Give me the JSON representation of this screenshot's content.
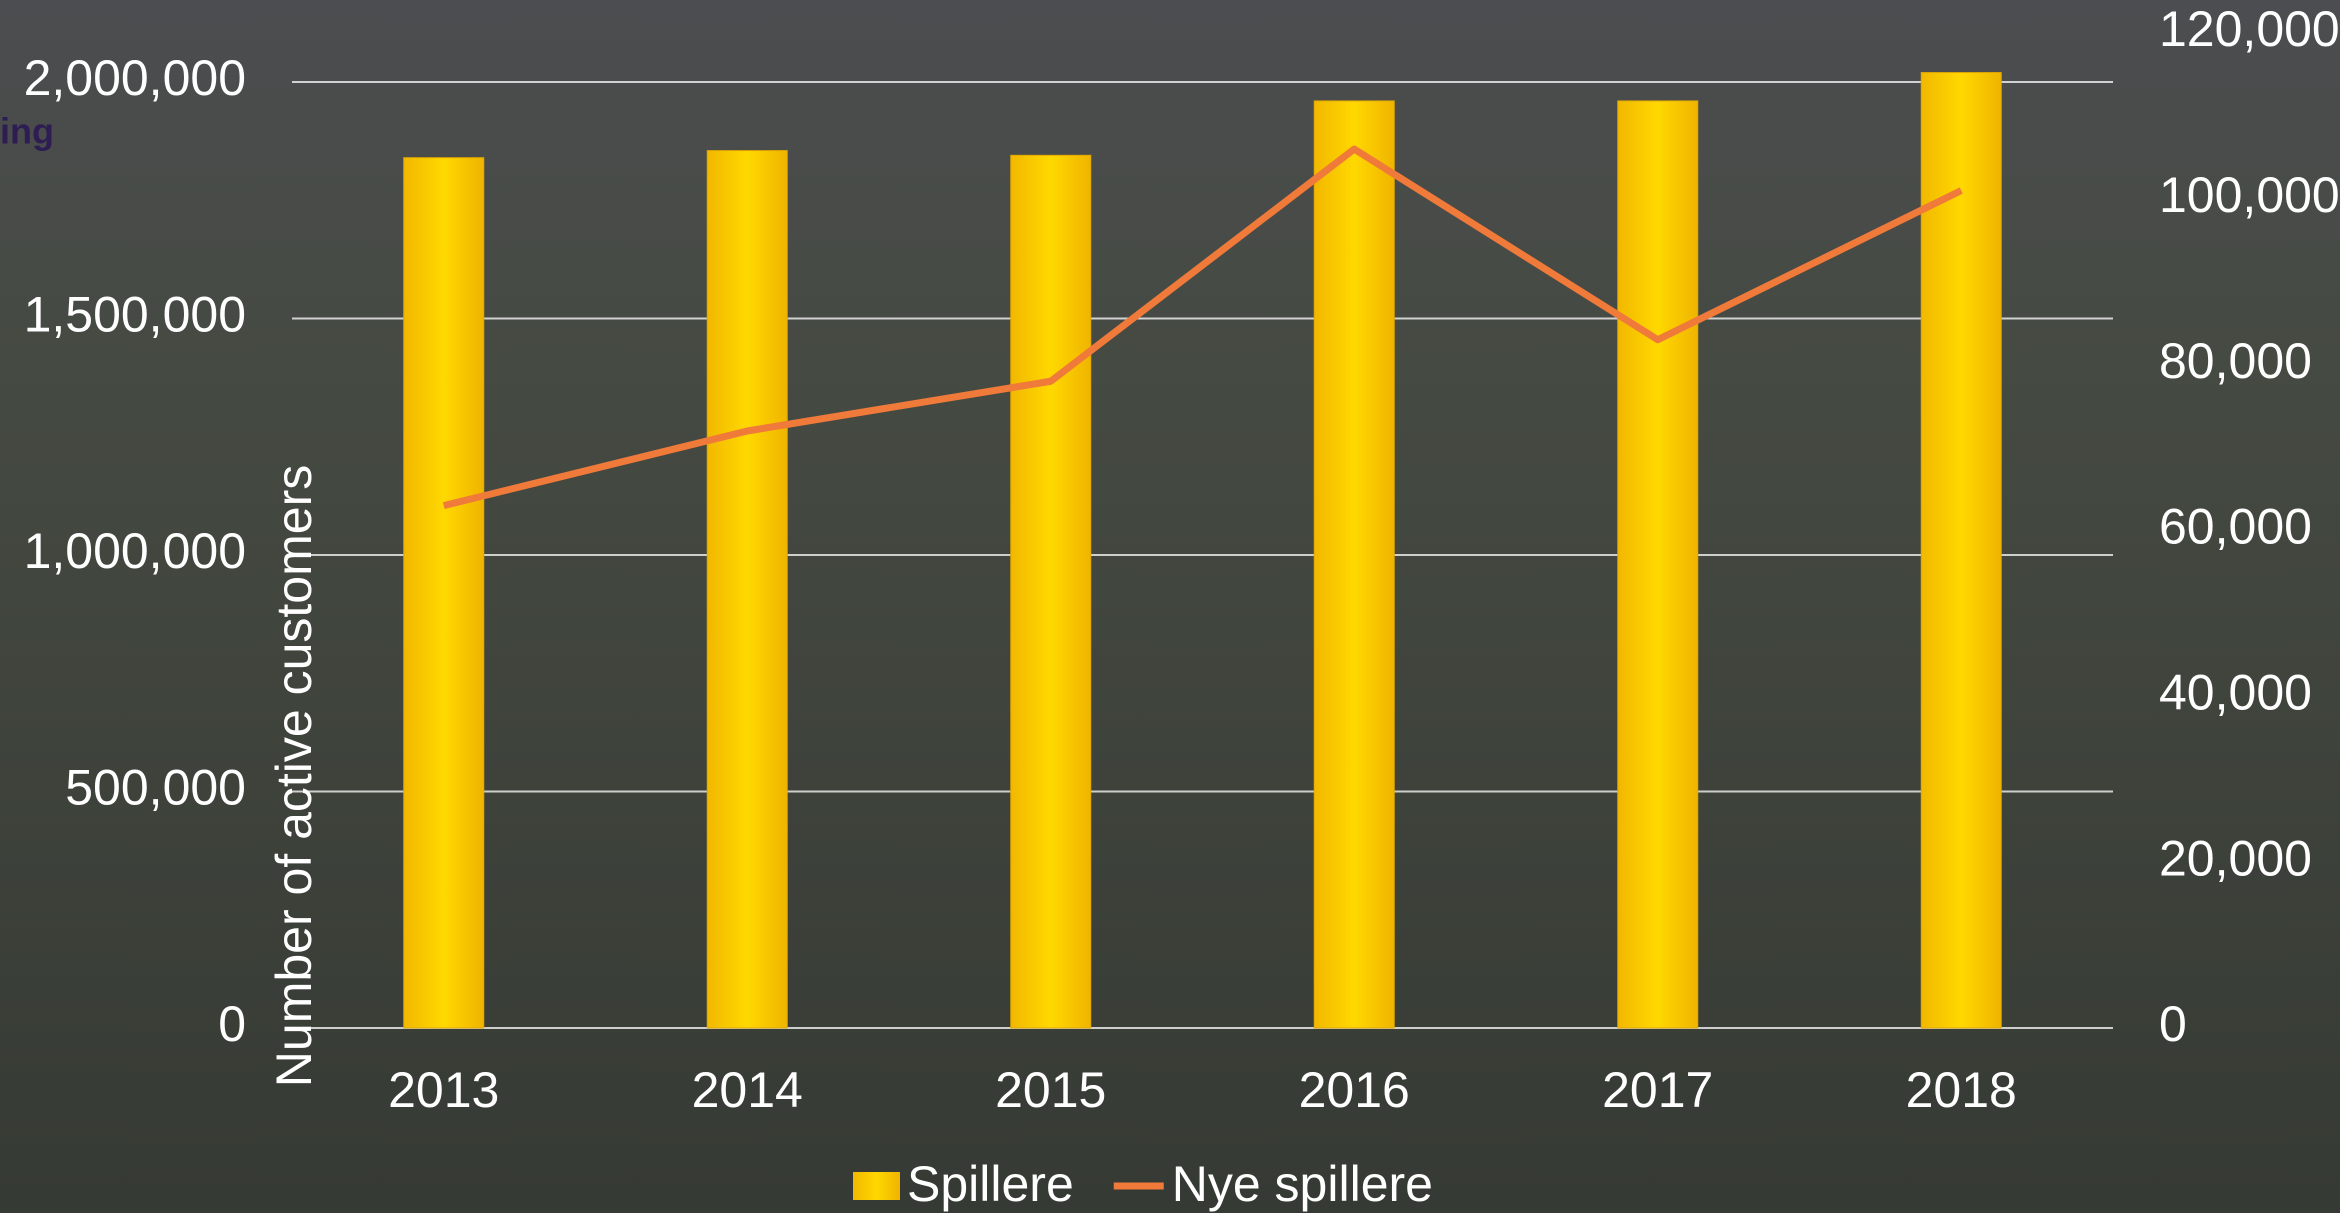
{
  "chart_data": {
    "type": "bar",
    "logo_text": "ing",
    "ylabel": "Number of active customers",
    "categories": [
      "2013",
      "2014",
      "2015",
      "2016",
      "2017",
      "2018"
    ],
    "series": [
      {
        "name": "Spillere",
        "type": "bar",
        "color": "#ffd200",
        "values": [
          1840000,
          1855000,
          1845000,
          1960000,
          1960000,
          2020000
        ]
      },
      {
        "name": "Nye spillere",
        "type": "line",
        "axis": "y2",
        "color": "#f07a3a",
        "values": [
          63000,
          72000,
          78000,
          106000,
          83000,
          101000
        ]
      }
    ],
    "ylim": [
      0,
      2000000
    ],
    "yticks": [
      0,
      {
        "value": 500000,
        "label": "500,000"
      },
      {
        "value": 1000000,
        "label": "1,000,000"
      },
      {
        "value": 1500000,
        "label": "1,500,000"
      },
      {
        "value": 2000000,
        "label": "2,000,000"
      }
    ],
    "y2lim": [
      0,
      120000
    ],
    "y2ticks": [
      0,
      {
        "value": 20000,
        "label": "20,000"
      },
      {
        "value": 40000,
        "label": "40,000"
      },
      {
        "value": 60000,
        "label": "60,000"
      },
      {
        "value": 80000,
        "label": "80,000"
      },
      {
        "value": 100000,
        "label": "100,000"
      },
      {
        "value": 120000,
        "label": "120,000"
      }
    ],
    "grid": true,
    "legend": "bottom"
  }
}
